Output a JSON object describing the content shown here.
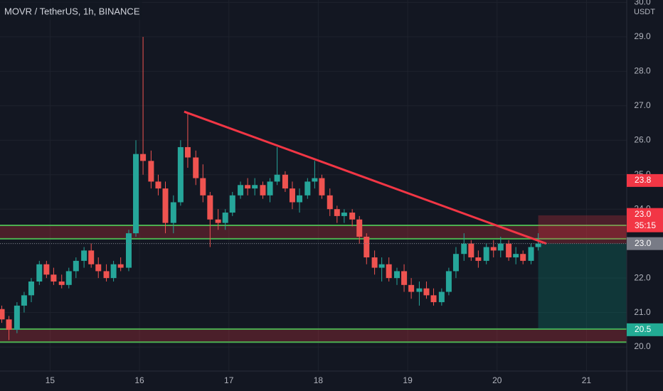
{
  "chart_data": {
    "type": "candlestick",
    "title": "MOVR / TetherUS, 1h, BINANCE",
    "currency": "USDT",
    "up_color": "#26a69a",
    "down_color": "#ef5350",
    "xlim": [
      14.44,
      21.45
    ],
    "ylim": [
      19.3,
      30.07
    ],
    "xticks": [
      15,
      16,
      17,
      18,
      19,
      20,
      21
    ],
    "yticks": [
      {
        "value": 20,
        "label": "20.0"
      },
      {
        "value": 21,
        "label": "21.0"
      },
      {
        "value": 22,
        "label": "22.0"
      },
      {
        "value": 23,
        "label": "23.0"
      },
      {
        "value": 24,
        "label": "24.0"
      },
      {
        "value": 25,
        "label": "25.0"
      },
      {
        "value": 26,
        "label": "26.0"
      },
      {
        "value": 27,
        "label": "27.0"
      },
      {
        "value": 28,
        "label": "28.0"
      },
      {
        "value": 29,
        "label": "29.0"
      },
      {
        "value": 30,
        "label": "30.0"
      }
    ],
    "grid": true,
    "x": [
      14.46,
      14.54,
      14.63,
      14.71,
      14.79,
      14.88,
      14.96,
      15.04,
      15.13,
      15.21,
      15.29,
      15.38,
      15.46,
      15.54,
      15.63,
      15.71,
      15.79,
      15.88,
      15.96,
      16.04,
      16.13,
      16.21,
      16.29,
      16.38,
      16.46,
      16.54,
      16.63,
      16.71,
      16.79,
      16.88,
      16.96,
      17.04,
      17.13,
      17.21,
      17.29,
      17.38,
      17.46,
      17.54,
      17.63,
      17.71,
      17.79,
      17.88,
      17.96,
      18.04,
      18.13,
      18.21,
      18.29,
      18.38,
      18.46,
      18.54,
      18.63,
      18.71,
      18.79,
      18.88,
      18.96,
      19.04,
      19.13,
      19.21,
      19.29,
      19.38,
      19.46,
      19.54,
      19.63,
      19.71,
      19.79,
      19.88,
      19.96,
      20.04,
      20.13,
      20.21,
      20.29,
      20.38,
      20.46
    ],
    "open": [
      21.1,
      20.8,
      20.5,
      21.2,
      21.5,
      21.9,
      22.4,
      22.1,
      21.9,
      21.8,
      22.2,
      22.5,
      22.8,
      22.4,
      22.2,
      22.0,
      22.4,
      22.3,
      23.3,
      25.6,
      25.4,
      24.8,
      24.6,
      23.6,
      24.2,
      25.8,
      25.5,
      24.9,
      24.4,
      23.7,
      23.6,
      23.9,
      24.4,
      24.7,
      24.6,
      24.7,
      24.4,
      24.8,
      25.0,
      24.6,
      24.2,
      24.4,
      24.8,
      24.9,
      24.4,
      24.0,
      23.8,
      23.9,
      23.7,
      23.2,
      22.6,
      22.3,
      22.4,
      22.0,
      22.2,
      21.8,
      21.6,
      21.7,
      21.5,
      21.3,
      21.6,
      22.2,
      22.7,
      23.0,
      22.6,
      22.5,
      22.9,
      22.8,
      23.0,
      22.6,
      22.7,
      22.5,
      22.9
    ],
    "high": [
      21.2,
      20.9,
      21.3,
      21.6,
      22.0,
      22.5,
      22.5,
      22.3,
      22.1,
      22.3,
      22.6,
      22.9,
      23.0,
      22.6,
      22.4,
      22.5,
      22.6,
      23.4,
      26.0,
      29.0,
      25.7,
      25.0,
      24.8,
      24.4,
      26.0,
      26.8,
      25.7,
      25.3,
      24.5,
      24.0,
      24.0,
      24.5,
      24.8,
      24.9,
      24.9,
      24.8,
      24.9,
      25.8,
      25.1,
      24.8,
      24.6,
      24.9,
      25.4,
      25.0,
      24.6,
      24.1,
      24.0,
      24.0,
      23.8,
      23.3,
      22.8,
      22.6,
      22.6,
      22.3,
      22.4,
      22.0,
      21.9,
      21.9,
      21.7,
      21.7,
      22.3,
      22.9,
      23.3,
      23.1,
      22.8,
      23.0,
      23.1,
      23.2,
      23.1,
      22.9,
      22.8,
      23.0,
      23.3
    ],
    "low": [
      20.7,
      20.2,
      20.4,
      21.0,
      21.3,
      21.8,
      22.0,
      21.8,
      21.7,
      21.7,
      22.0,
      22.3,
      22.3,
      22.0,
      21.9,
      21.9,
      22.2,
      22.2,
      23.2,
      25.0,
      24.6,
      24.4,
      23.3,
      23.3,
      24.1,
      25.2,
      24.7,
      24.2,
      22.9,
      23.4,
      23.4,
      23.8,
      24.3,
      24.4,
      24.4,
      24.3,
      24.2,
      24.7,
      24.5,
      24.0,
      23.9,
      24.3,
      24.6,
      24.3,
      23.8,
      23.6,
      23.6,
      23.5,
      23.0,
      22.4,
      22.1,
      21.9,
      21.9,
      21.8,
      21.6,
      21.4,
      21.2,
      21.4,
      21.2,
      21.2,
      21.5,
      22.0,
      22.5,
      22.5,
      22.3,
      22.4,
      22.6,
      22.6,
      22.5,
      22.4,
      22.4,
      22.4,
      22.8
    ],
    "close": [
      20.8,
      20.5,
      21.2,
      21.5,
      21.9,
      22.4,
      22.1,
      21.9,
      21.8,
      22.2,
      22.5,
      22.8,
      22.4,
      22.2,
      22.0,
      22.4,
      22.3,
      23.3,
      25.6,
      25.4,
      24.8,
      24.6,
      23.6,
      24.2,
      25.8,
      25.5,
      24.9,
      24.4,
      23.7,
      23.6,
      23.9,
      24.4,
      24.7,
      24.6,
      24.7,
      24.4,
      24.8,
      25.0,
      24.6,
      24.2,
      24.4,
      24.8,
      24.9,
      24.4,
      24.0,
      23.8,
      23.9,
      23.7,
      23.2,
      22.6,
      22.3,
      22.4,
      22.0,
      22.2,
      21.8,
      21.6,
      21.7,
      21.5,
      21.3,
      21.6,
      22.2,
      22.7,
      23.0,
      22.6,
      22.5,
      22.9,
      22.8,
      23.0,
      22.6,
      22.7,
      22.5,
      22.9,
      23.0
    ],
    "zones": [
      {
        "from": 23.14,
        "to": 23.53
      },
      {
        "from": 20.14,
        "to": 20.52
      }
    ],
    "trendline": {
      "x": [
        16.5,
        20.55
      ],
      "y": [
        26.83,
        23.0
      ]
    },
    "position": {
      "x": [
        20.46,
        21.45
      ],
      "entry": 23.0,
      "stop": 23.82,
      "target": 20.52
    },
    "price_labels": [
      {
        "value": 23.8,
        "label": "23.8",
        "color": "#f23645"
      },
      {
        "value": 23.0,
        "label": "23.0",
        "color": "#f23645",
        "countdown": "35:15"
      },
      {
        "value": 23.0,
        "label": "23.0",
        "color": "#787b86"
      },
      {
        "value": 20.5,
        "label": "20.5",
        "color": "#22ab94"
      }
    ]
  }
}
